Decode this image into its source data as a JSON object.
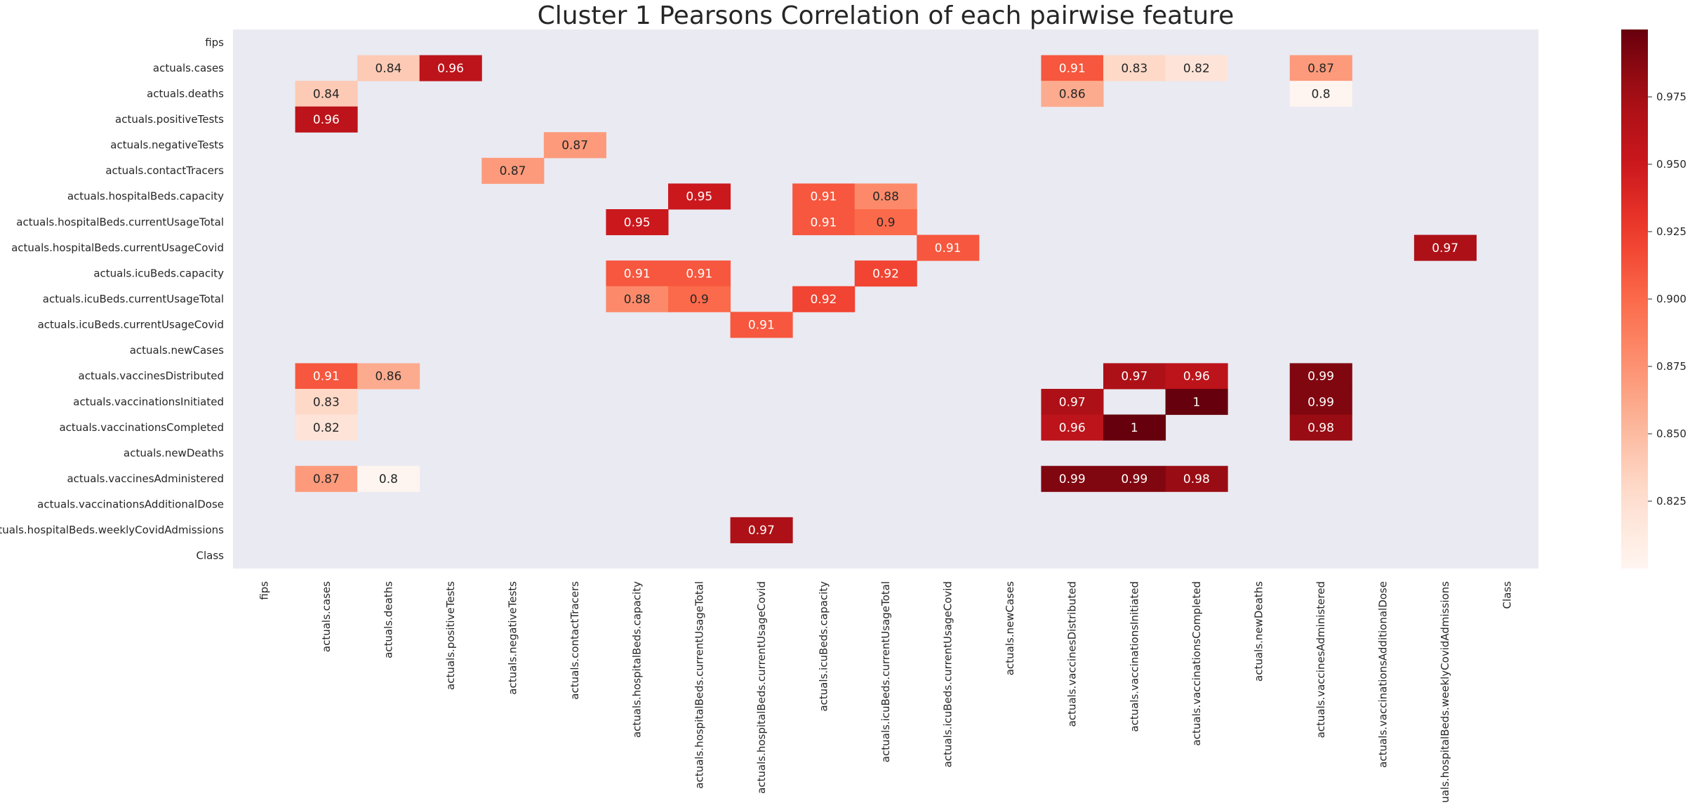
{
  "chart_data": {
    "type": "heatmap",
    "title": "Cluster 1 Pearsons Correlation of each pairwise feature",
    "xlabel": "",
    "ylabel": "",
    "labels": [
      "fips",
      "actuals.cases",
      "actuals.deaths",
      "actuals.positiveTests",
      "actuals.negativeTests",
      "actuals.contactTracers",
      "actuals.hospitalBeds.capacity",
      "actuals.hospitalBeds.currentUsageTotal",
      "actuals.hospitalBeds.currentUsageCovid",
      "actuals.icuBeds.capacity",
      "actuals.icuBeds.currentUsageTotal",
      "actuals.icuBeds.currentUsageCovid",
      "actuals.newCases",
      "actuals.vaccinesDistributed",
      "actuals.vaccinationsInitiated",
      "actuals.vaccinationsCompleted",
      "actuals.newDeaths",
      "actuals.vaccinesAdministered",
      "actuals.vaccinationsAdditionalDose",
      "actuals.hospitalBeds.weeklyCovidAdmissions",
      "Class"
    ],
    "cells": [
      {
        "row": 1,
        "col": 2,
        "value": 0.84,
        "label": "0.84"
      },
      {
        "row": 1,
        "col": 3,
        "value": 0.96,
        "label": "0.96"
      },
      {
        "row": 1,
        "col": 13,
        "value": 0.91,
        "label": "0.91"
      },
      {
        "row": 1,
        "col": 14,
        "value": 0.83,
        "label": "0.83"
      },
      {
        "row": 1,
        "col": 15,
        "value": 0.82,
        "label": "0.82"
      },
      {
        "row": 1,
        "col": 17,
        "value": 0.87,
        "label": "0.87"
      },
      {
        "row": 2,
        "col": 1,
        "value": 0.84,
        "label": "0.84"
      },
      {
        "row": 2,
        "col": 13,
        "value": 0.86,
        "label": "0.86"
      },
      {
        "row": 2,
        "col": 17,
        "value": 0.8,
        "label": "0.8"
      },
      {
        "row": 3,
        "col": 1,
        "value": 0.96,
        "label": "0.96"
      },
      {
        "row": 4,
        "col": 5,
        "value": 0.87,
        "label": "0.87"
      },
      {
        "row": 5,
        "col": 4,
        "value": 0.87,
        "label": "0.87"
      },
      {
        "row": 6,
        "col": 7,
        "value": 0.95,
        "label": "0.95"
      },
      {
        "row": 6,
        "col": 9,
        "value": 0.91,
        "label": "0.91"
      },
      {
        "row": 6,
        "col": 10,
        "value": 0.88,
        "label": "0.88"
      },
      {
        "row": 7,
        "col": 6,
        "value": 0.95,
        "label": "0.95"
      },
      {
        "row": 7,
        "col": 9,
        "value": 0.91,
        "label": "0.91"
      },
      {
        "row": 7,
        "col": 10,
        "value": 0.9,
        "label": "0.9"
      },
      {
        "row": 8,
        "col": 11,
        "value": 0.91,
        "label": "0.91"
      },
      {
        "row": 8,
        "col": 19,
        "value": 0.97,
        "label": "0.97"
      },
      {
        "row": 9,
        "col": 6,
        "value": 0.91,
        "label": "0.91"
      },
      {
        "row": 9,
        "col": 7,
        "value": 0.91,
        "label": "0.91"
      },
      {
        "row": 9,
        "col": 10,
        "value": 0.92,
        "label": "0.92"
      },
      {
        "row": 10,
        "col": 6,
        "value": 0.88,
        "label": "0.88"
      },
      {
        "row": 10,
        "col": 7,
        "value": 0.9,
        "label": "0.9"
      },
      {
        "row": 10,
        "col": 9,
        "value": 0.92,
        "label": "0.92"
      },
      {
        "row": 11,
        "col": 8,
        "value": 0.91,
        "label": "0.91"
      },
      {
        "row": 13,
        "col": 1,
        "value": 0.91,
        "label": "0.91"
      },
      {
        "row": 13,
        "col": 2,
        "value": 0.86,
        "label": "0.86"
      },
      {
        "row": 13,
        "col": 14,
        "value": 0.97,
        "label": "0.97"
      },
      {
        "row": 13,
        "col": 15,
        "value": 0.96,
        "label": "0.96"
      },
      {
        "row": 13,
        "col": 17,
        "value": 0.99,
        "label": "0.99"
      },
      {
        "row": 14,
        "col": 1,
        "value": 0.83,
        "label": "0.83"
      },
      {
        "row": 14,
        "col": 13,
        "value": 0.97,
        "label": "0.97"
      },
      {
        "row": 14,
        "col": 15,
        "value": 1.0,
        "label": "1"
      },
      {
        "row": 14,
        "col": 17,
        "value": 0.99,
        "label": "0.99"
      },
      {
        "row": 15,
        "col": 1,
        "value": 0.82,
        "label": "0.82"
      },
      {
        "row": 15,
        "col": 13,
        "value": 0.96,
        "label": "0.96"
      },
      {
        "row": 15,
        "col": 14,
        "value": 1.0,
        "label": "1"
      },
      {
        "row": 15,
        "col": 17,
        "value": 0.98,
        "label": "0.98"
      },
      {
        "row": 17,
        "col": 1,
        "value": 0.87,
        "label": "0.87"
      },
      {
        "row": 17,
        "col": 2,
        "value": 0.8,
        "label": "0.8"
      },
      {
        "row": 17,
        "col": 13,
        "value": 0.99,
        "label": "0.99"
      },
      {
        "row": 17,
        "col": 14,
        "value": 0.99,
        "label": "0.99"
      },
      {
        "row": 17,
        "col": 15,
        "value": 0.98,
        "label": "0.98"
      },
      {
        "row": 19,
        "col": 8,
        "value": 0.97,
        "label": "0.97"
      }
    ],
    "colorbar": {
      "colormap": "Reds",
      "range": [
        0.8,
        1.0
      ],
      "ticks": [
        0.825,
        0.85,
        0.875,
        0.9,
        0.925,
        0.95,
        0.975
      ],
      "tick_labels": [
        "0.825",
        "0.850",
        "0.875",
        "0.900",
        "0.925",
        "0.950",
        "0.975"
      ]
    },
    "background_color": "#EAEAF2",
    "grid": false
  }
}
